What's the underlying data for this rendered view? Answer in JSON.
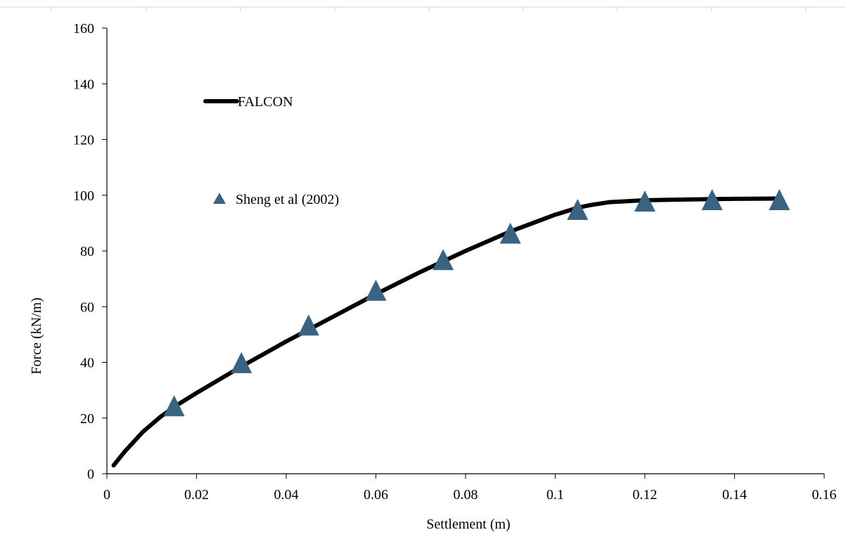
{
  "chart_data": {
    "type": "line",
    "title": "",
    "xlabel": "Settlement (m)",
    "ylabel": "Force (kN/m)",
    "xlim": [
      0,
      0.16
    ],
    "ylim": [
      0,
      160
    ],
    "x_ticks": [
      0,
      0.02,
      0.04,
      0.06,
      0.08,
      0.1,
      0.12,
      0.14,
      0.16
    ],
    "x_tick_labels": [
      "0",
      "0.02",
      "0.04",
      "0.06",
      "0.08",
      "0.1",
      "0.12",
      "0.14",
      "0.16"
    ],
    "y_ticks": [
      0,
      20,
      40,
      60,
      80,
      100,
      120,
      140,
      160
    ],
    "y_tick_labels": [
      "0",
      "20",
      "40",
      "60",
      "80",
      "100",
      "120",
      "140",
      "160"
    ],
    "grid": false,
    "series": [
      {
        "name": "FALCON",
        "type": "line",
        "color": "#000000",
        "x": [
          0.0015,
          0.004,
          0.008,
          0.012,
          0.016,
          0.02,
          0.03,
          0.04,
          0.05,
          0.06,
          0.07,
          0.08,
          0.09,
          0.1,
          0.105,
          0.108,
          0.112,
          0.12,
          0.13,
          0.14,
          0.15
        ],
        "y": [
          3,
          8,
          15,
          20.5,
          25,
          29,
          38.5,
          47.5,
          56,
          64.5,
          72.5,
          80,
          87,
          93,
          95.5,
          96.5,
          97.5,
          98.2,
          98.5,
          98.7,
          98.8
        ]
      },
      {
        "name": "Sheng et al (2002)",
        "type": "scatter",
        "marker": "triangle",
        "color": "#3a6281",
        "x": [
          0.015,
          0.03,
          0.045,
          0.06,
          0.075,
          0.09,
          0.105,
          0.12,
          0.135,
          0.15
        ],
        "y": [
          23.5,
          39,
          52.5,
          65,
          76,
          85.5,
          94,
          97,
          97.5,
          97.5
        ]
      }
    ]
  }
}
